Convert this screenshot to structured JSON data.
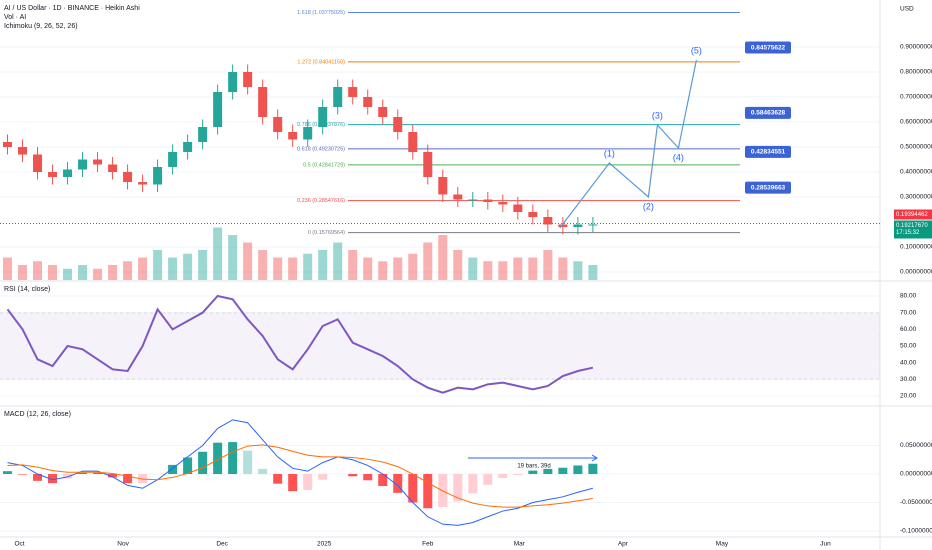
{
  "chart_data": [
    {
      "type": "candlestick",
      "title": "AI / US Dollar · 1D · BINANCE · Heikin Ashi",
      "indicators": [
        "Vol · AI",
        "Ichimoku (9, 26, 52, 26)"
      ],
      "y_label": "USD",
      "up_color": "#26a69a",
      "down_color": "#ef5350",
      "xlim": [
        -0.5,
        58.13
      ],
      "xticks": [
        {
          "value": 0.8,
          "label": "Oct"
        },
        {
          "value": 7.7,
          "label": "Nov"
        },
        {
          "value": 14.3,
          "label": "Dec"
        },
        {
          "value": 21.1,
          "label": "2025"
        },
        {
          "value": 28,
          "label": "Feb"
        },
        {
          "value": 34.1,
          "label": "Mar"
        },
        {
          "value": 41,
          "label": "Apr"
        },
        {
          "value": 47.6,
          "label": "May"
        },
        {
          "value": 54.5,
          "label": "Jun"
        }
      ],
      "ylim": [
        -0.032,
        1.088
      ],
      "yticks": [
        {
          "value": 0,
          "label": "0.00000000"
        },
        {
          "value": 0.1,
          "label": "0.10000000"
        },
        {
          "value": 0.3,
          "label": "0.30000000"
        },
        {
          "value": 0.4,
          "label": "0.40000000"
        },
        {
          "value": 0.5,
          "label": "0.50000000"
        },
        {
          "value": 0.6,
          "label": "0.60000000"
        },
        {
          "value": 0.7,
          "label": "0.70000000"
        },
        {
          "value": 0.8,
          "label": "0.80000000"
        },
        {
          "value": 0.9,
          "label": "0.90000000"
        }
      ],
      "open": [
        0.52,
        0.5,
        0.47,
        0.4,
        0.38,
        0.41,
        0.45,
        0.43,
        0.4,
        0.36,
        0.35,
        0.42,
        0.48,
        0.52,
        0.58,
        0.72,
        0.8,
        0.74,
        0.62,
        0.56,
        0.53,
        0.58,
        0.66,
        0.74,
        0.7,
        0.66,
        0.62,
        0.56,
        0.48,
        0.38,
        0.31,
        0.29,
        0.29,
        0.28,
        0.27,
        0.24,
        0.22,
        0.19,
        0.18,
        0.19
      ],
      "high": [
        0.55,
        0.53,
        0.5,
        0.43,
        0.44,
        0.48,
        0.48,
        0.46,
        0.43,
        0.39,
        0.45,
        0.51,
        0.55,
        0.61,
        0.75,
        0.83,
        0.83,
        0.77,
        0.65,
        0.59,
        0.61,
        0.69,
        0.77,
        0.77,
        0.73,
        0.69,
        0.65,
        0.59,
        0.51,
        0.41,
        0.34,
        0.32,
        0.32,
        0.31,
        0.3,
        0.27,
        0.25,
        0.22,
        0.22,
        0.22
      ],
      "low": [
        0.47,
        0.44,
        0.37,
        0.35,
        0.35,
        0.38,
        0.4,
        0.37,
        0.33,
        0.32,
        0.32,
        0.39,
        0.45,
        0.49,
        0.55,
        0.69,
        0.71,
        0.59,
        0.53,
        0.5,
        0.5,
        0.55,
        0.63,
        0.67,
        0.63,
        0.59,
        0.53,
        0.45,
        0.35,
        0.28,
        0.26,
        0.26,
        0.25,
        0.24,
        0.21,
        0.19,
        0.16,
        0.15,
        0.15,
        0.16
      ],
      "close": [
        0.5,
        0.47,
        0.4,
        0.38,
        0.41,
        0.45,
        0.43,
        0.4,
        0.36,
        0.35,
        0.42,
        0.48,
        0.52,
        0.58,
        0.72,
        0.8,
        0.74,
        0.62,
        0.56,
        0.53,
        0.58,
        0.66,
        0.74,
        0.7,
        0.66,
        0.62,
        0.56,
        0.48,
        0.38,
        0.31,
        0.29,
        0.29,
        0.28,
        0.27,
        0.24,
        0.22,
        0.19,
        0.18,
        0.19,
        0.19
      ],
      "volume": [
        3,
        2,
        2.5,
        2,
        1.5,
        2,
        1.5,
        2,
        2.5,
        3,
        4,
        3,
        3.5,
        4,
        7,
        6,
        5,
        4,
        3,
        3,
        3.5,
        4,
        5,
        4,
        3,
        2.5,
        3,
        3.5,
        5,
        6,
        4,
        3,
        2.5,
        2.5,
        3,
        3,
        4,
        3,
        2.5,
        2
      ],
      "vlim": [
        0,
        10
      ],
      "fib_levels": [
        {
          "value": 1.03775025,
          "label": "1.618 (1.03775025)",
          "color": "#5b8ad6"
        },
        {
          "value": 0.8404115,
          "label": "1.272 (0.84041150)",
          "color": "#f57c00"
        },
        {
          "value": 0.58937876,
          "label": "0.786 (0.58937876)",
          "color": "#26a6b0"
        },
        {
          "value": 0.49230725,
          "label": "0.618 (0.49230725)",
          "color": "#5c6bc0"
        },
        {
          "value": 0.42841729,
          "label": "0.5 (0.42841729)",
          "color": "#4caf50"
        },
        {
          "value": 0.28547616,
          "label": "0.236 (0.28547616)",
          "color": "#ef5350"
        },
        {
          "value": 0.15769564,
          "label": "0 (0.15769564)",
          "color": "#787b86"
        }
      ],
      "targets": [
        {
          "value": 0.84575622,
          "label": "0.84575622"
        },
        {
          "value": 0.58463628,
          "label": "0.58463628"
        },
        {
          "value": 0.42834551,
          "label": "0.42834551"
        },
        {
          "value": 0.28539663,
          "label": "0.28539663"
        }
      ],
      "target_color": "#3b63d6",
      "price_marks": [
        {
          "value": 0.19394462,
          "label": "0.19394462",
          "color": "#f23645"
        },
        {
          "value": 0.1921767,
          "label": "0.19217670",
          "color": "#089981"
        }
      ],
      "countdown": "17:15:32",
      "wave": {
        "x": [
          36.8,
          40.1,
          42.7,
          43.3,
          44.7,
          45.9
        ],
        "values": [
          0.176,
          0.436,
          0.3,
          0.588,
          0.496,
          0.848
        ],
        "labels": [
          null,
          "(1)",
          "(2)",
          "(3)",
          "(4)",
          "(5)"
        ],
        "color": "#5b9bd5"
      }
    },
    {
      "type": "line",
      "title": "RSI (14, close)",
      "xlim": [
        -0.5,
        58.13
      ],
      "ylim": [
        14.6,
        87.8
      ],
      "yticks": [
        {
          "value": 20,
          "label": "20.00"
        },
        {
          "value": 30,
          "label": "30.00"
        },
        {
          "value": 40,
          "label": "40.00"
        },
        {
          "value": 50,
          "label": "50.00"
        },
        {
          "value": 60,
          "label": "60.00"
        },
        {
          "value": 70,
          "label": "70.00"
        },
        {
          "value": 80,
          "label": "80.00"
        }
      ],
      "band": [
        30,
        70
      ],
      "midline": 50,
      "series": [
        {
          "color": "#7e57c2",
          "values": [
            72,
            60,
            42,
            38,
            50,
            48,
            42,
            36,
            35,
            50,
            72,
            60,
            65,
            70,
            80,
            78,
            66,
            56,
            42,
            36,
            48,
            62,
            66,
            52,
            48,
            44,
            38,
            30,
            25,
            22,
            25,
            24,
            27,
            28,
            26,
            24,
            26,
            32,
            35,
            37
          ]
        }
      ]
    },
    {
      "type": "macd",
      "title": "MACD (12, 26, close)",
      "xlim": [
        -0.5,
        58.13
      ],
      "ylim": [
        -0.1105,
        0.1158
      ],
      "yticks": [
        {
          "value": -0.1,
          "label": "-0.10000000"
        },
        {
          "value": -0.05,
          "label": "-0.05000000"
        },
        {
          "value": 0,
          "label": "0.00000000"
        },
        {
          "value": 0.05,
          "label": "0.05000000"
        }
      ],
      "annotation": "19 bars, 39d",
      "histogram": [
        0.005,
        -0.001,
        -0.012,
        -0.016,
        -0.008,
        0.002,
        0.002,
        -0.006,
        -0.016,
        -0.016,
        0.0,
        0.016,
        0.029,
        0.039,
        0.055,
        0.056,
        0.041,
        0.009,
        -0.017,
        -0.03,
        -0.028,
        -0.01,
        0.0,
        -0.004,
        -0.011,
        -0.021,
        -0.033,
        -0.05,
        -0.06,
        -0.058,
        -0.048,
        -0.034,
        -0.019,
        -0.007,
        -0.002,
        0.006,
        0.009,
        0.011,
        0.015,
        0.018
      ],
      "series": [
        {
          "color": "#2962ff",
          "values": [
            0.02,
            0.015,
            0.0,
            -0.01,
            -0.005,
            0.005,
            0.005,
            -0.005,
            -0.02,
            -0.025,
            -0.01,
            0.01,
            0.03,
            0.05,
            0.08,
            0.095,
            0.09,
            0.06,
            0.03,
            0.01,
            0.005,
            0.02,
            0.03,
            0.025,
            0.015,
            0.0,
            -0.02,
            -0.05,
            -0.075,
            -0.088,
            -0.09,
            -0.085,
            -0.075,
            -0.065,
            -0.06,
            -0.05,
            -0.045,
            -0.04,
            -0.032,
            -0.025
          ]
        },
        {
          "color": "#ff6d00",
          "values": [
            0.015,
            0.016,
            0.012,
            0.006,
            0.003,
            0.003,
            0.003,
            0.001,
            -0.004,
            -0.009,
            -0.01,
            -0.006,
            0.001,
            0.011,
            0.025,
            0.039,
            0.049,
            0.051,
            0.047,
            0.04,
            0.033,
            0.03,
            0.03,
            0.029,
            0.026,
            0.021,
            0.013,
            0.0,
            -0.015,
            -0.03,
            -0.042,
            -0.051,
            -0.056,
            -0.058,
            -0.058,
            -0.056,
            -0.054,
            -0.051,
            -0.047,
            -0.043
          ]
        }
      ]
    }
  ]
}
